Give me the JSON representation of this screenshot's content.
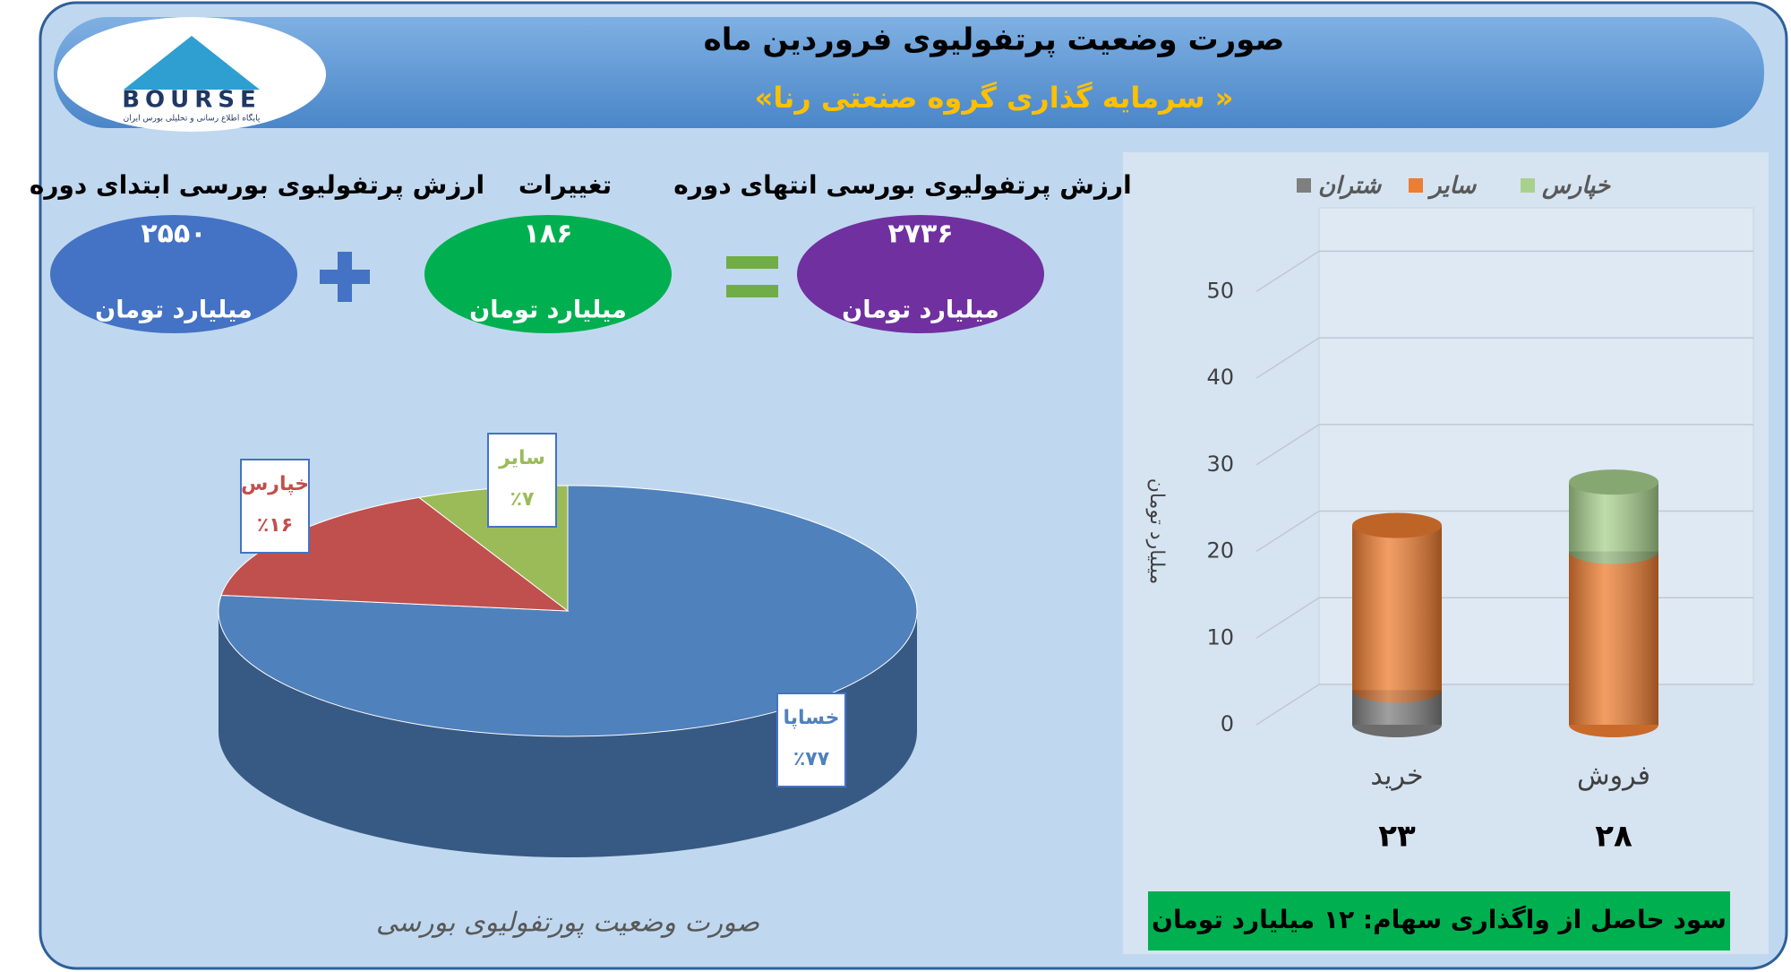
{
  "header": {
    "title": "صورت وضعیت پرتفولیوی فروردین ماه",
    "subtitle": "«سرمایه گذاری گروه صنعتی رنا »",
    "logo_text": "BOURSE",
    "logo_caption": "پایگاه اطلاع رسانی و تحلیلی بورس ایران"
  },
  "summary": {
    "items": [
      {
        "label": "ارزش پرتفولیوی بورسی ابتدای دوره",
        "value": "۲۵۵۰",
        "unit": "میلیارد تومان"
      },
      {
        "label": "تغییرات",
        "value": "۱۸۶",
        "unit": "میلیارد تومان"
      },
      {
        "label": "ارزش پرتفولیوی بورسی انتهای دوره",
        "value": "۲۷۳۶",
        "unit": "میلیارد تومان"
      }
    ]
  },
  "chart_data": [
    {
      "type": "pie",
      "title": "صورت وضعیت پورتفولیوی بورسی",
      "categories": [
        "خساپا",
        "خپارس",
        "سایر"
      ],
      "values": [
        77,
        16,
        7
      ],
      "value_labels": [
        "٪۷۷",
        "٪۱۶",
        "٪۷"
      ],
      "colors": [
        "#4f81bd",
        "#c0504d",
        "#9bbb59"
      ]
    },
    {
      "type": "bar",
      "stacked": true,
      "ylabel": "میلیارد تومان",
      "categories": [
        "خرید",
        "فروش"
      ],
      "total_labels": [
        "۲۳",
        "۲۸"
      ],
      "series": [
        {
          "name": "شتران",
          "color": "#7f7f7f",
          "values": [
            4,
            0
          ]
        },
        {
          "name": "سایر",
          "color": "#ed7d31",
          "values": [
            19,
            20
          ]
        },
        {
          "name": "خپارس",
          "color": "#a9d18e",
          "values": [
            0,
            8
          ]
        }
      ],
      "ylim": [
        0,
        55
      ],
      "yticks": [
        0,
        10,
        20,
        30,
        40,
        50
      ],
      "grid": true,
      "legend": "top"
    }
  ],
  "footer": {
    "note": "سود حاصل از واگذاری سهام: ۱۲ میلیارد تومان"
  }
}
